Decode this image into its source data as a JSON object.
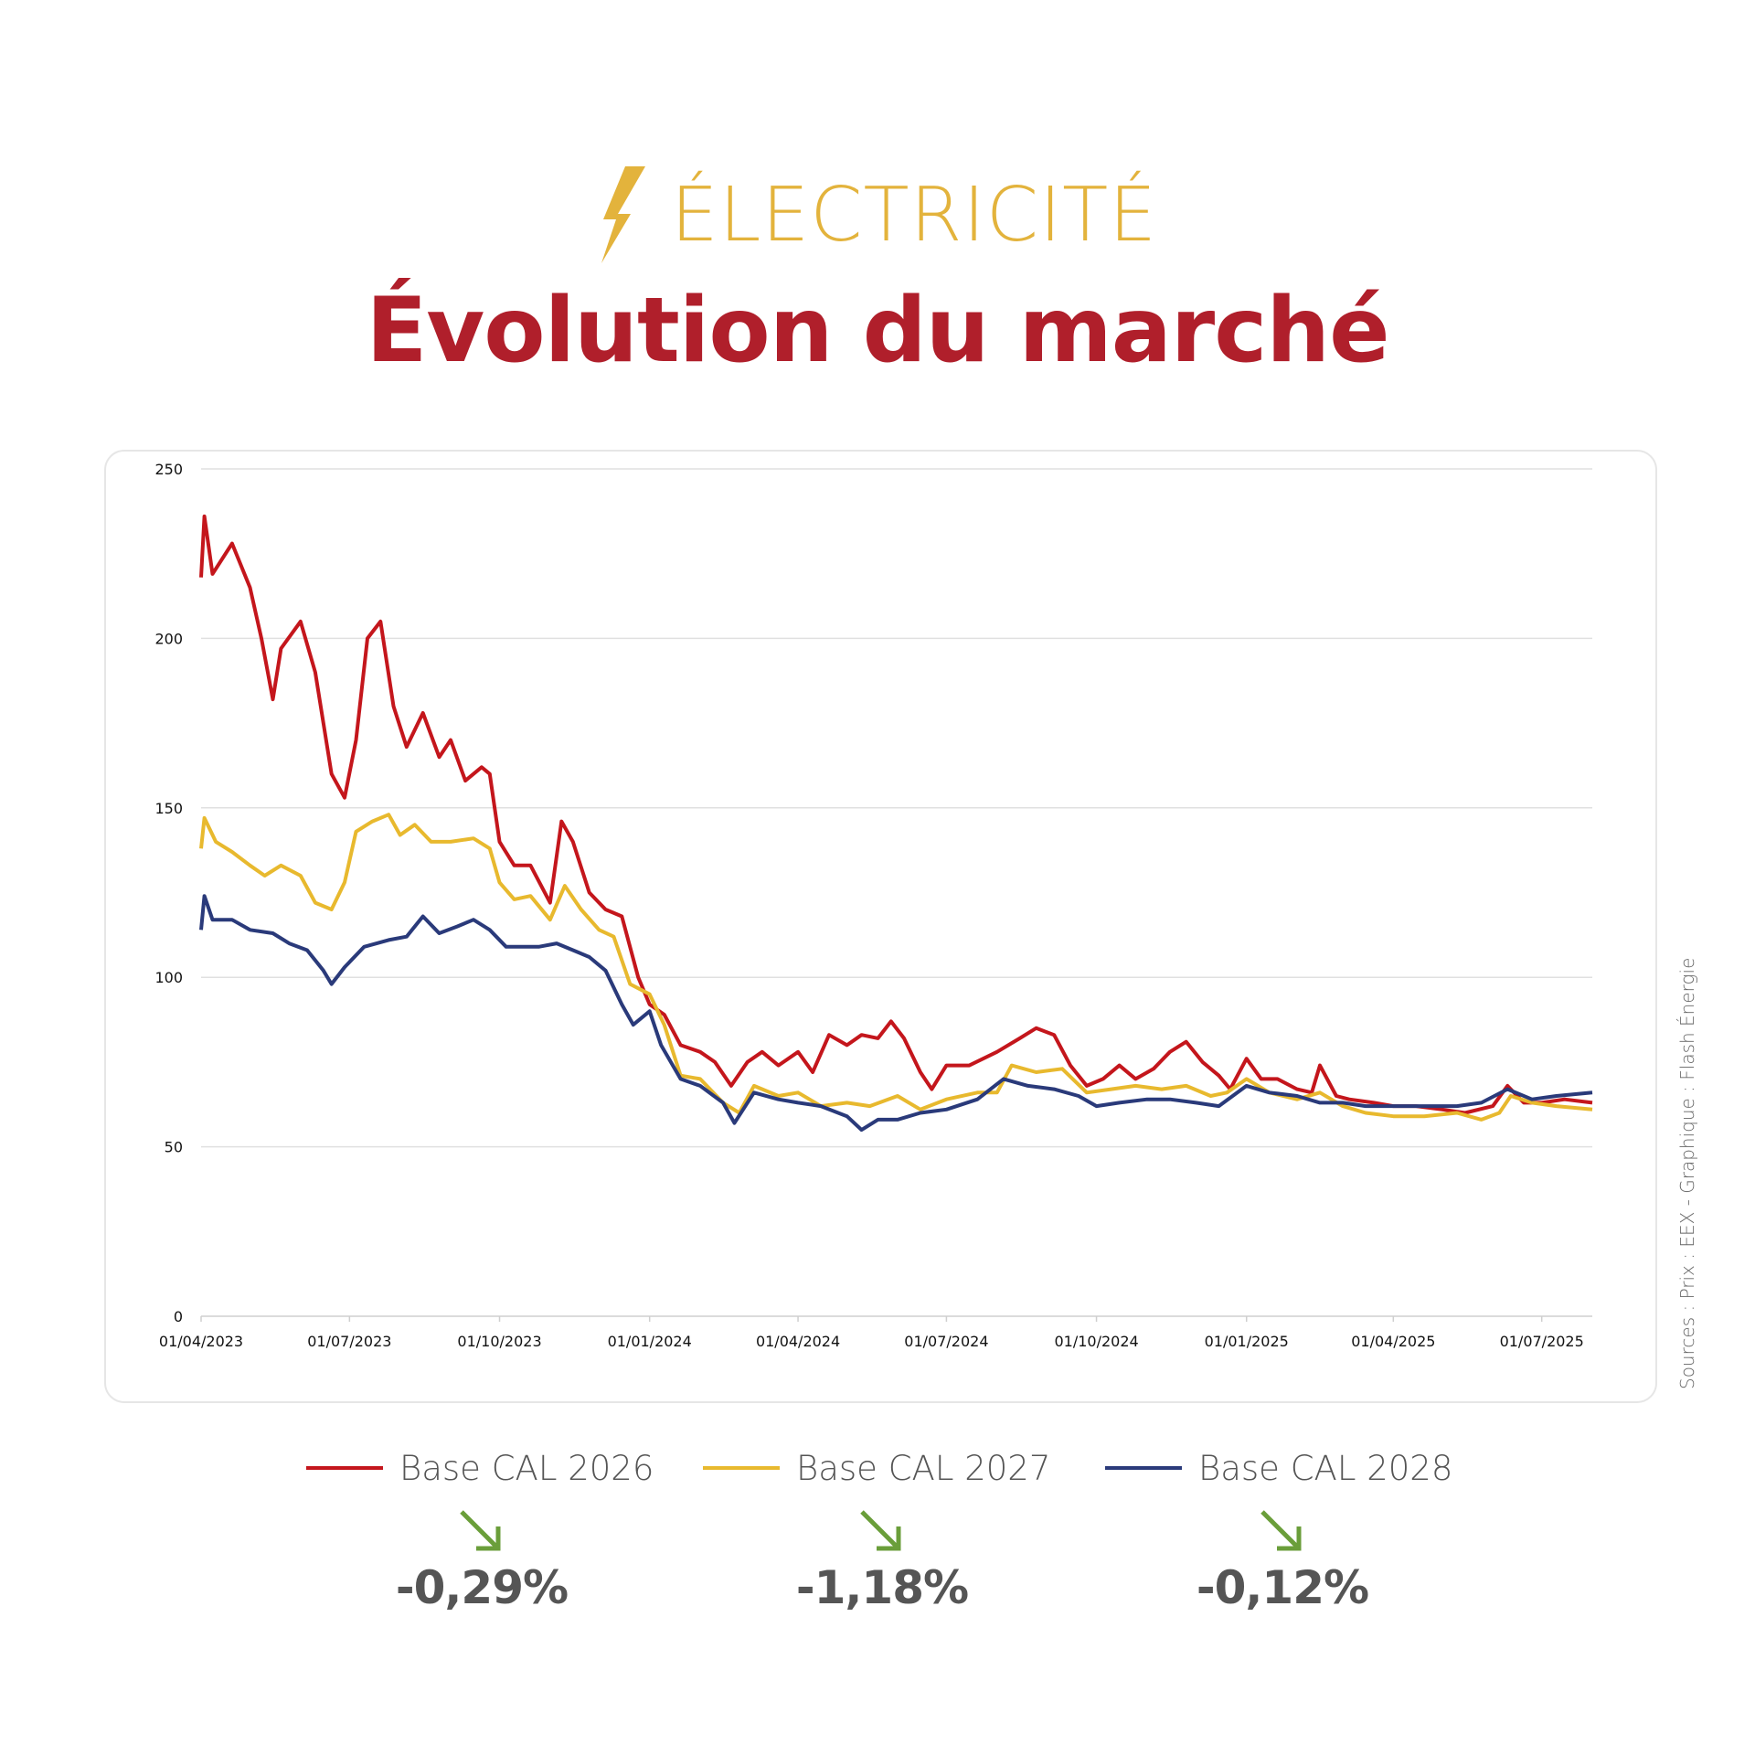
{
  "header": {
    "category": "ÉLECTRICITÉ",
    "category_icon": "lightning-bolt-icon",
    "title": "Évolution du marché",
    "category_color": "#e3b33c",
    "title_color": "#b01f2b"
  },
  "source": "Sources : Prix : EEX - Graphique : Flash Énergie",
  "chart_data": {
    "type": "line",
    "title": "",
    "xlabel": "",
    "ylabel": "",
    "ylim": [
      0,
      250
    ],
    "yticks": [
      "0",
      "50",
      "100",
      "150",
      "200",
      "250"
    ],
    "xlim": [
      "2023-04-01",
      "2025-08-01"
    ],
    "xticks": [
      "01/04/2023",
      "01/07/2023",
      "01/10/2023",
      "01/01/2024",
      "01/04/2024",
      "01/07/2024",
      "01/10/2024",
      "01/01/2025",
      "01/04/2025",
      "01/07/2025"
    ],
    "grid": "horizontal",
    "legend": "bottom",
    "series": [
      {
        "name": "Base CAL 2026",
        "color": "#c4161c",
        "points": [
          [
            "2023-04-01",
            218
          ],
          [
            "2023-04-03",
            236
          ],
          [
            "2023-04-08",
            219
          ],
          [
            "2023-04-20",
            228
          ],
          [
            "2023-05-01",
            215
          ],
          [
            "2023-05-08",
            200
          ],
          [
            "2023-05-15",
            182
          ],
          [
            "2023-05-20",
            197
          ],
          [
            "2023-06-01",
            205
          ],
          [
            "2023-06-10",
            190
          ],
          [
            "2023-06-15",
            175
          ],
          [
            "2023-06-20",
            160
          ],
          [
            "2023-06-28",
            153
          ],
          [
            "2023-07-05",
            170
          ],
          [
            "2023-07-12",
            200
          ],
          [
            "2023-07-20",
            205
          ],
          [
            "2023-07-28",
            180
          ],
          [
            "2023-08-05",
            168
          ],
          [
            "2023-08-15",
            178
          ],
          [
            "2023-08-25",
            165
          ],
          [
            "2023-09-01",
            170
          ],
          [
            "2023-09-10",
            158
          ],
          [
            "2023-09-20",
            162
          ],
          [
            "2023-09-25",
            160
          ],
          [
            "2023-10-01",
            140
          ],
          [
            "2023-10-10",
            133
          ],
          [
            "2023-10-20",
            133
          ],
          [
            "2023-11-01",
            122
          ],
          [
            "2023-11-08",
            146
          ],
          [
            "2023-11-15",
            140
          ],
          [
            "2023-11-25",
            125
          ],
          [
            "2023-12-05",
            120
          ],
          [
            "2023-12-15",
            118
          ],
          [
            "2023-12-25",
            100
          ],
          [
            "2024-01-01",
            92
          ],
          [
            "2024-01-10",
            89
          ],
          [
            "2024-01-20",
            80
          ],
          [
            "2024-02-01",
            78
          ],
          [
            "2024-02-10",
            75
          ],
          [
            "2024-02-20",
            68
          ],
          [
            "2024-03-01",
            75
          ],
          [
            "2024-03-10",
            78
          ],
          [
            "2024-03-20",
            74
          ],
          [
            "2024-04-01",
            78
          ],
          [
            "2024-04-10",
            72
          ],
          [
            "2024-04-20",
            83
          ],
          [
            "2024-05-01",
            80
          ],
          [
            "2024-05-10",
            83
          ],
          [
            "2024-05-20",
            82
          ],
          [
            "2024-05-28",
            87
          ],
          [
            "2024-06-05",
            82
          ],
          [
            "2024-06-15",
            72
          ],
          [
            "2024-06-22",
            67
          ],
          [
            "2024-07-01",
            74
          ],
          [
            "2024-07-15",
            74
          ],
          [
            "2024-08-01",
            78
          ],
          [
            "2024-08-15",
            82
          ],
          [
            "2024-08-25",
            85
          ],
          [
            "2024-09-05",
            83
          ],
          [
            "2024-09-15",
            74
          ],
          [
            "2024-09-25",
            68
          ],
          [
            "2024-10-05",
            70
          ],
          [
            "2024-10-15",
            74
          ],
          [
            "2024-10-25",
            70
          ],
          [
            "2024-11-05",
            73
          ],
          [
            "2024-11-15",
            78
          ],
          [
            "2024-11-25",
            81
          ],
          [
            "2024-12-05",
            75
          ],
          [
            "2024-12-15",
            71
          ],
          [
            "2024-12-22",
            67
          ],
          [
            "2025-01-01",
            76
          ],
          [
            "2025-01-10",
            70
          ],
          [
            "2025-01-20",
            70
          ],
          [
            "2025-02-01",
            67
          ],
          [
            "2025-02-10",
            66
          ],
          [
            "2025-02-15",
            74
          ],
          [
            "2025-02-25",
            65
          ],
          [
            "2025-03-05",
            64
          ],
          [
            "2025-03-20",
            63
          ],
          [
            "2025-04-01",
            62
          ],
          [
            "2025-04-15",
            62
          ],
          [
            "2025-05-01",
            61
          ],
          [
            "2025-05-15",
            60
          ],
          [
            "2025-06-01",
            62
          ],
          [
            "2025-06-10",
            68
          ],
          [
            "2025-06-20",
            63
          ],
          [
            "2025-07-01",
            63
          ],
          [
            "2025-07-15",
            64
          ],
          [
            "2025-08-01",
            63
          ]
        ]
      },
      {
        "name": "Base CAL 2027",
        "color": "#e8b92e",
        "points": [
          [
            "2023-04-01",
            138
          ],
          [
            "2023-04-03",
            147
          ],
          [
            "2023-04-10",
            140
          ],
          [
            "2023-04-20",
            137
          ],
          [
            "2023-05-01",
            133
          ],
          [
            "2023-05-10",
            130
          ],
          [
            "2023-05-20",
            133
          ],
          [
            "2023-06-01",
            130
          ],
          [
            "2023-06-10",
            122
          ],
          [
            "2023-06-20",
            120
          ],
          [
            "2023-06-28",
            128
          ],
          [
            "2023-07-05",
            143
          ],
          [
            "2023-07-15",
            146
          ],
          [
            "2023-07-25",
            148
          ],
          [
            "2023-08-01",
            142
          ],
          [
            "2023-08-10",
            145
          ],
          [
            "2023-08-20",
            140
          ],
          [
            "2023-09-01",
            140
          ],
          [
            "2023-09-15",
            141
          ],
          [
            "2023-09-25",
            138
          ],
          [
            "2023-10-01",
            128
          ],
          [
            "2023-10-10",
            123
          ],
          [
            "2023-10-20",
            124
          ],
          [
            "2023-11-01",
            117
          ],
          [
            "2023-11-10",
            127
          ],
          [
            "2023-11-20",
            120
          ],
          [
            "2023-12-01",
            114
          ],
          [
            "2023-12-10",
            112
          ],
          [
            "2023-12-20",
            98
          ],
          [
            "2024-01-01",
            95
          ],
          [
            "2024-01-10",
            86
          ],
          [
            "2024-01-20",
            71
          ],
          [
            "2024-02-01",
            70
          ],
          [
            "2024-02-15",
            63
          ],
          [
            "2024-02-25",
            60
          ],
          [
            "2024-03-05",
            68
          ],
          [
            "2024-03-20",
            65
          ],
          [
            "2024-04-01",
            66
          ],
          [
            "2024-04-15",
            62
          ],
          [
            "2024-05-01",
            63
          ],
          [
            "2024-05-15",
            62
          ],
          [
            "2024-06-01",
            65
          ],
          [
            "2024-06-15",
            61
          ],
          [
            "2024-07-01",
            64
          ],
          [
            "2024-07-20",
            66
          ],
          [
            "2024-08-01",
            66
          ],
          [
            "2024-08-10",
            74
          ],
          [
            "2024-08-25",
            72
          ],
          [
            "2024-09-10",
            73
          ],
          [
            "2024-09-25",
            66
          ],
          [
            "2024-10-10",
            67
          ],
          [
            "2024-10-25",
            68
          ],
          [
            "2024-11-10",
            67
          ],
          [
            "2024-11-25",
            68
          ],
          [
            "2024-12-10",
            65
          ],
          [
            "2024-12-20",
            66
          ],
          [
            "2025-01-01",
            70
          ],
          [
            "2025-01-15",
            66
          ],
          [
            "2025-02-01",
            64
          ],
          [
            "2025-02-15",
            66
          ],
          [
            "2025-03-01",
            62
          ],
          [
            "2025-03-15",
            60
          ],
          [
            "2025-04-01",
            59
          ],
          [
            "2025-04-20",
            59
          ],
          [
            "2025-05-10",
            60
          ],
          [
            "2025-05-25",
            58
          ],
          [
            "2025-06-05",
            60
          ],
          [
            "2025-06-12",
            65
          ],
          [
            "2025-06-25",
            63
          ],
          [
            "2025-07-10",
            62
          ],
          [
            "2025-08-01",
            61
          ]
        ]
      },
      {
        "name": "Base CAL 2028",
        "color": "#2a3a7a",
        "points": [
          [
            "2023-04-01",
            114
          ],
          [
            "2023-04-03",
            124
          ],
          [
            "2023-04-08",
            117
          ],
          [
            "2023-04-20",
            117
          ],
          [
            "2023-05-01",
            114
          ],
          [
            "2023-05-15",
            113
          ],
          [
            "2023-05-25",
            110
          ],
          [
            "2023-06-05",
            108
          ],
          [
            "2023-06-15",
            102
          ],
          [
            "2023-06-20",
            98
          ],
          [
            "2023-06-28",
            103
          ],
          [
            "2023-07-10",
            109
          ],
          [
            "2023-07-25",
            111
          ],
          [
            "2023-08-05",
            112
          ],
          [
            "2023-08-15",
            118
          ],
          [
            "2023-08-25",
            113
          ],
          [
            "2023-09-05",
            115
          ],
          [
            "2023-09-15",
            117
          ],
          [
            "2023-09-25",
            114
          ],
          [
            "2023-10-05",
            109
          ],
          [
            "2023-10-15",
            109
          ],
          [
            "2023-10-25",
            109
          ],
          [
            "2023-11-05",
            110
          ],
          [
            "2023-11-15",
            108
          ],
          [
            "2023-11-25",
            106
          ],
          [
            "2023-12-05",
            102
          ],
          [
            "2023-12-15",
            92
          ],
          [
            "2023-12-22",
            86
          ],
          [
            "2024-01-01",
            90
          ],
          [
            "2024-01-08",
            80
          ],
          [
            "2024-01-20",
            70
          ],
          [
            "2024-02-01",
            68
          ],
          [
            "2024-02-15",
            63
          ],
          [
            "2024-02-22",
            57
          ],
          [
            "2024-03-05",
            66
          ],
          [
            "2024-03-20",
            64
          ],
          [
            "2024-04-01",
            63
          ],
          [
            "2024-04-15",
            62
          ],
          [
            "2024-05-01",
            59
          ],
          [
            "2024-05-10",
            55
          ],
          [
            "2024-05-20",
            58
          ],
          [
            "2024-06-01",
            58
          ],
          [
            "2024-06-15",
            60
          ],
          [
            "2024-07-01",
            61
          ],
          [
            "2024-07-20",
            64
          ],
          [
            "2024-08-05",
            70
          ],
          [
            "2024-08-20",
            68
          ],
          [
            "2024-09-05",
            67
          ],
          [
            "2024-09-20",
            65
          ],
          [
            "2024-10-01",
            62
          ],
          [
            "2024-10-15",
            63
          ],
          [
            "2024-11-01",
            64
          ],
          [
            "2024-11-15",
            64
          ],
          [
            "2024-12-01",
            63
          ],
          [
            "2024-12-15",
            62
          ],
          [
            "2025-01-01",
            68
          ],
          [
            "2025-01-15",
            66
          ],
          [
            "2025-02-01",
            65
          ],
          [
            "2025-02-15",
            63
          ],
          [
            "2025-03-01",
            63
          ],
          [
            "2025-03-15",
            62
          ],
          [
            "2025-04-01",
            62
          ],
          [
            "2025-04-20",
            62
          ],
          [
            "2025-05-10",
            62
          ],
          [
            "2025-05-25",
            63
          ],
          [
            "2025-06-10",
            67
          ],
          [
            "2025-06-25",
            64
          ],
          [
            "2025-07-10",
            65
          ],
          [
            "2025-08-01",
            66
          ]
        ]
      }
    ]
  },
  "legend": [
    {
      "label": "Base CAL 2026",
      "color": "#c4161c"
    },
    {
      "label": "Base CAL 2027",
      "color": "#e8b92e"
    },
    {
      "label": "Base CAL 2028",
      "color": "#2a3a7a"
    }
  ],
  "changes": [
    {
      "value": "-0,29%",
      "direction": "down",
      "icon": "arrow-down-right-icon",
      "color": "#6a9e3a"
    },
    {
      "value": "-1,18%",
      "direction": "down",
      "icon": "arrow-down-right-icon",
      "color": "#6a9e3a"
    },
    {
      "value": "-0,12%",
      "direction": "down",
      "icon": "arrow-down-right-icon",
      "color": "#6a9e3a"
    }
  ]
}
